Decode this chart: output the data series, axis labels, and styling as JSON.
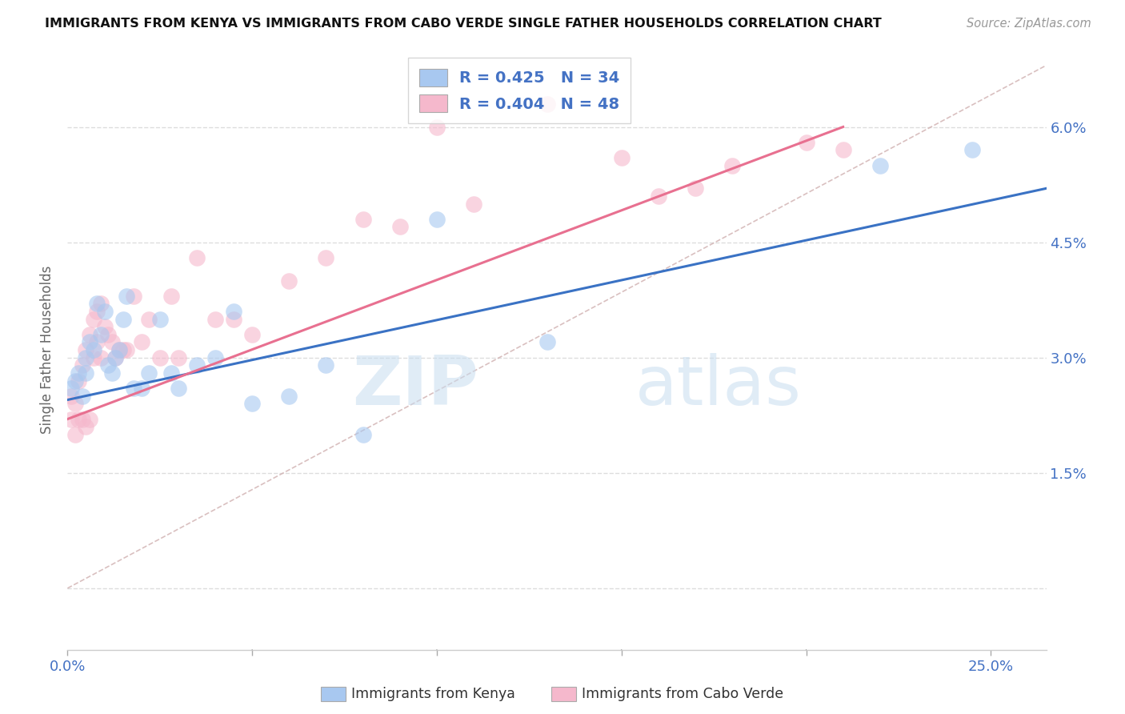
{
  "title": "IMMIGRANTS FROM KENYA VS IMMIGRANTS FROM CABO VERDE SINGLE FATHER HOUSEHOLDS CORRELATION CHART",
  "source": "Source: ZipAtlas.com",
  "ylabel_label": "Single Father Households",
  "xlim": [
    0.0,
    0.265
  ],
  "ylim": [
    -0.008,
    0.07
  ],
  "kenya_color": "#a8c8f0",
  "cabo_verde_color": "#f5b8cc",
  "kenya_line_color": "#3A72C4",
  "cabo_verde_line_color": "#E87090",
  "diagonal_color": "#d0b0b0",
  "watermark_zip": "ZIP",
  "watermark_atlas": "atlas",
  "background_color": "#ffffff",
  "grid_color": "#dddddd",
  "axis_color": "#4472c4",
  "title_color": "#111111",
  "legend_kenya_label": "R = 0.425   N = 34",
  "legend_cabo_label": "R = 0.404   N = 48",
  "kenya_scatter_x": [
    0.001,
    0.002,
    0.003,
    0.004,
    0.005,
    0.005,
    0.006,
    0.007,
    0.008,
    0.009,
    0.01,
    0.011,
    0.012,
    0.013,
    0.014,
    0.015,
    0.016,
    0.018,
    0.02,
    0.022,
    0.025,
    0.028,
    0.03,
    0.035,
    0.04,
    0.045,
    0.05,
    0.06,
    0.07,
    0.08,
    0.1,
    0.13,
    0.22,
    0.245
  ],
  "kenya_scatter_y": [
    0.026,
    0.027,
    0.028,
    0.025,
    0.03,
    0.028,
    0.032,
    0.031,
    0.037,
    0.033,
    0.036,
    0.029,
    0.028,
    0.03,
    0.031,
    0.035,
    0.038,
    0.026,
    0.026,
    0.028,
    0.035,
    0.028,
    0.026,
    0.029,
    0.03,
    0.036,
    0.024,
    0.025,
    0.029,
    0.02,
    0.048,
    0.032,
    0.055,
    0.057
  ],
  "cabo_verde_scatter_x": [
    0.001,
    0.001,
    0.002,
    0.002,
    0.003,
    0.003,
    0.004,
    0.004,
    0.005,
    0.005,
    0.006,
    0.006,
    0.007,
    0.007,
    0.008,
    0.008,
    0.009,
    0.009,
    0.01,
    0.011,
    0.012,
    0.013,
    0.014,
    0.015,
    0.016,
    0.018,
    0.02,
    0.022,
    0.025,
    0.028,
    0.03,
    0.035,
    0.04,
    0.045,
    0.05,
    0.06,
    0.07,
    0.08,
    0.09,
    0.1,
    0.11,
    0.13,
    0.15,
    0.16,
    0.17,
    0.18,
    0.2,
    0.21
  ],
  "cabo_verde_scatter_y": [
    0.022,
    0.025,
    0.024,
    0.02,
    0.027,
    0.022,
    0.029,
    0.022,
    0.031,
    0.021,
    0.033,
    0.022,
    0.035,
    0.03,
    0.036,
    0.032,
    0.037,
    0.03,
    0.034,
    0.033,
    0.032,
    0.03,
    0.031,
    0.031,
    0.031,
    0.038,
    0.032,
    0.035,
    0.03,
    0.038,
    0.03,
    0.043,
    0.035,
    0.035,
    0.033,
    0.04,
    0.043,
    0.048,
    0.047,
    0.06,
    0.05,
    0.063,
    0.056,
    0.051,
    0.052,
    0.055,
    0.058,
    0.057
  ],
  "kenya_line_x": [
    0.0,
    0.265
  ],
  "kenya_line_y": [
    0.0245,
    0.052
  ],
  "cabo_verde_line_x": [
    0.0,
    0.21
  ],
  "cabo_verde_line_y": [
    0.022,
    0.06
  ],
  "diagonal_line_x": [
    0.0,
    0.265
  ],
  "diagonal_line_y": [
    0.0,
    0.068
  ],
  "x_ticks": [
    0.0,
    0.05,
    0.1,
    0.15,
    0.2,
    0.25
  ],
  "y_ticks": [
    0.0,
    0.015,
    0.03,
    0.045,
    0.06
  ],
  "bottom_label_kenya": "Immigrants from Kenya",
  "bottom_label_cabo": "Immigrants from Cabo Verde"
}
